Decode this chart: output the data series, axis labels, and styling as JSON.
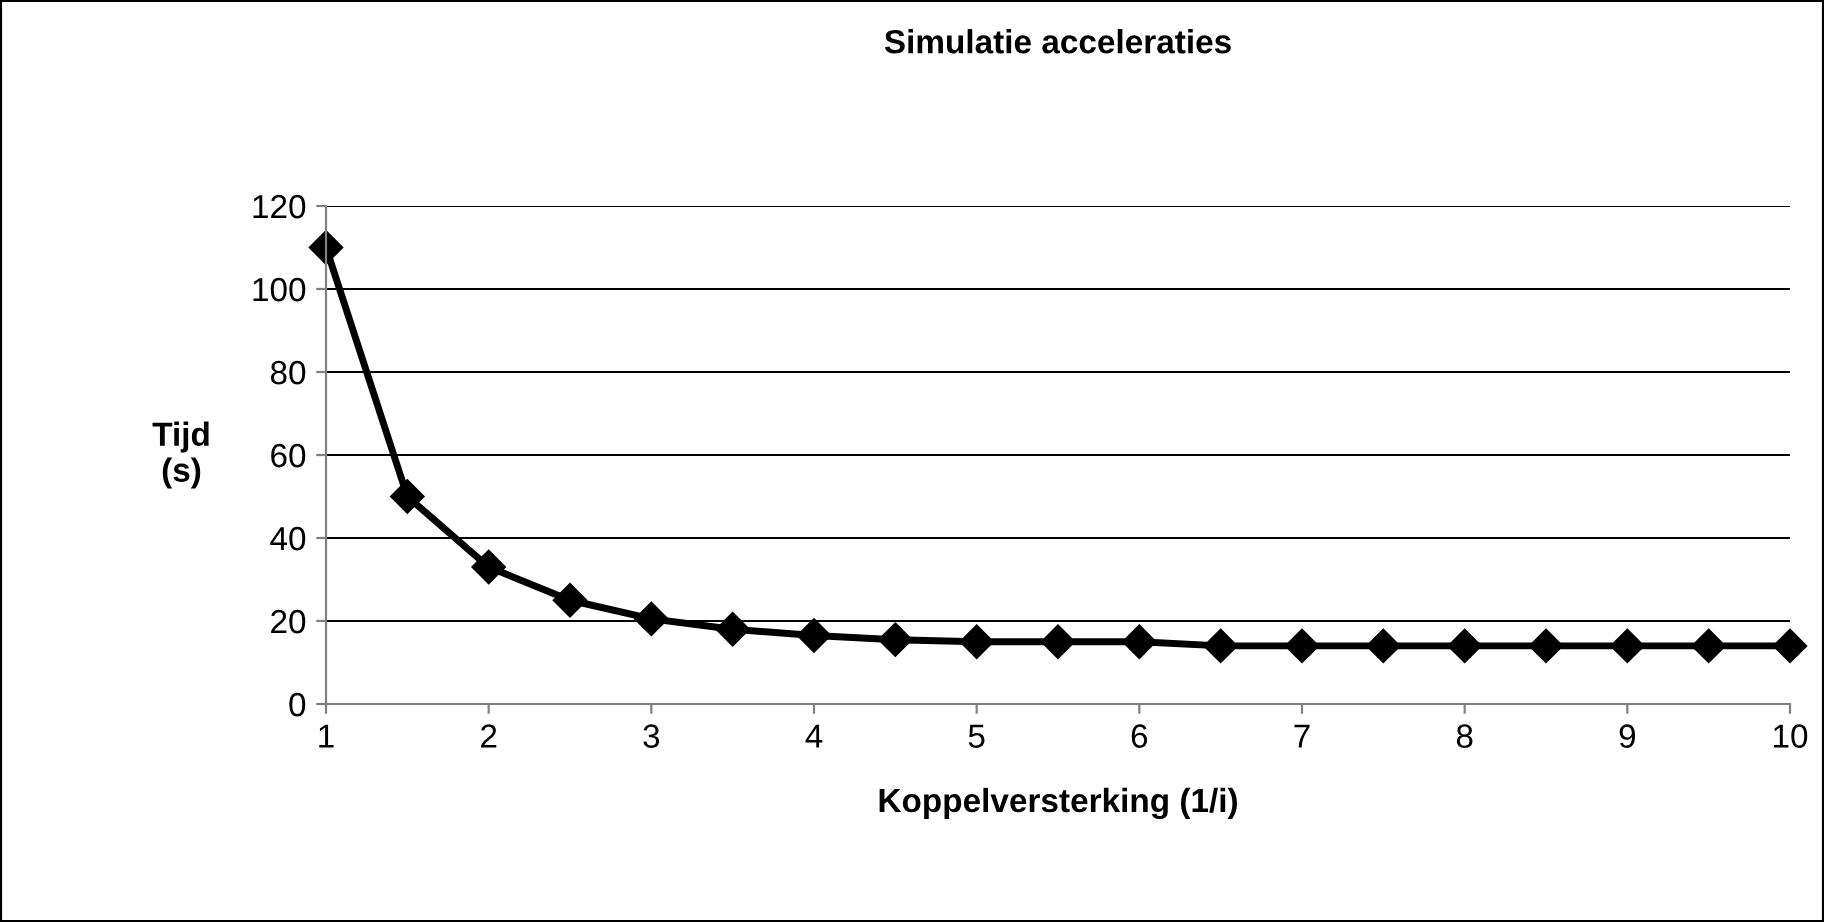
{
  "chart_data": {
    "type": "line",
    "title": "Simulatie acceleraties",
    "xlabel": "Koppelversterking (1/i)",
    "ylabel": "Tijd\n(s)",
    "x": [
      1,
      1.5,
      2,
      2.5,
      3,
      3.5,
      4,
      4.5,
      5,
      5.5,
      6,
      6.5,
      7,
      7.5,
      8,
      8.5,
      9,
      9.5,
      10
    ],
    "series": [
      {
        "color": "#000000",
        "values": [
          110,
          50,
          33,
          25,
          20.5,
          18,
          16.5,
          15.5,
          15,
          15,
          15,
          14,
          14,
          14,
          14,
          14,
          14,
          14,
          14
        ]
      }
    ],
    "xlim": [
      1,
      10
    ],
    "xticks": [
      1,
      2,
      3,
      4,
      5,
      6,
      7,
      8,
      9,
      10
    ],
    "ylim": [
      0,
      120
    ],
    "yticks": [
      0,
      20,
      40,
      60,
      80,
      100,
      120
    ],
    "grid": "y",
    "marker": "diamond",
    "line_style": "solid"
  }
}
